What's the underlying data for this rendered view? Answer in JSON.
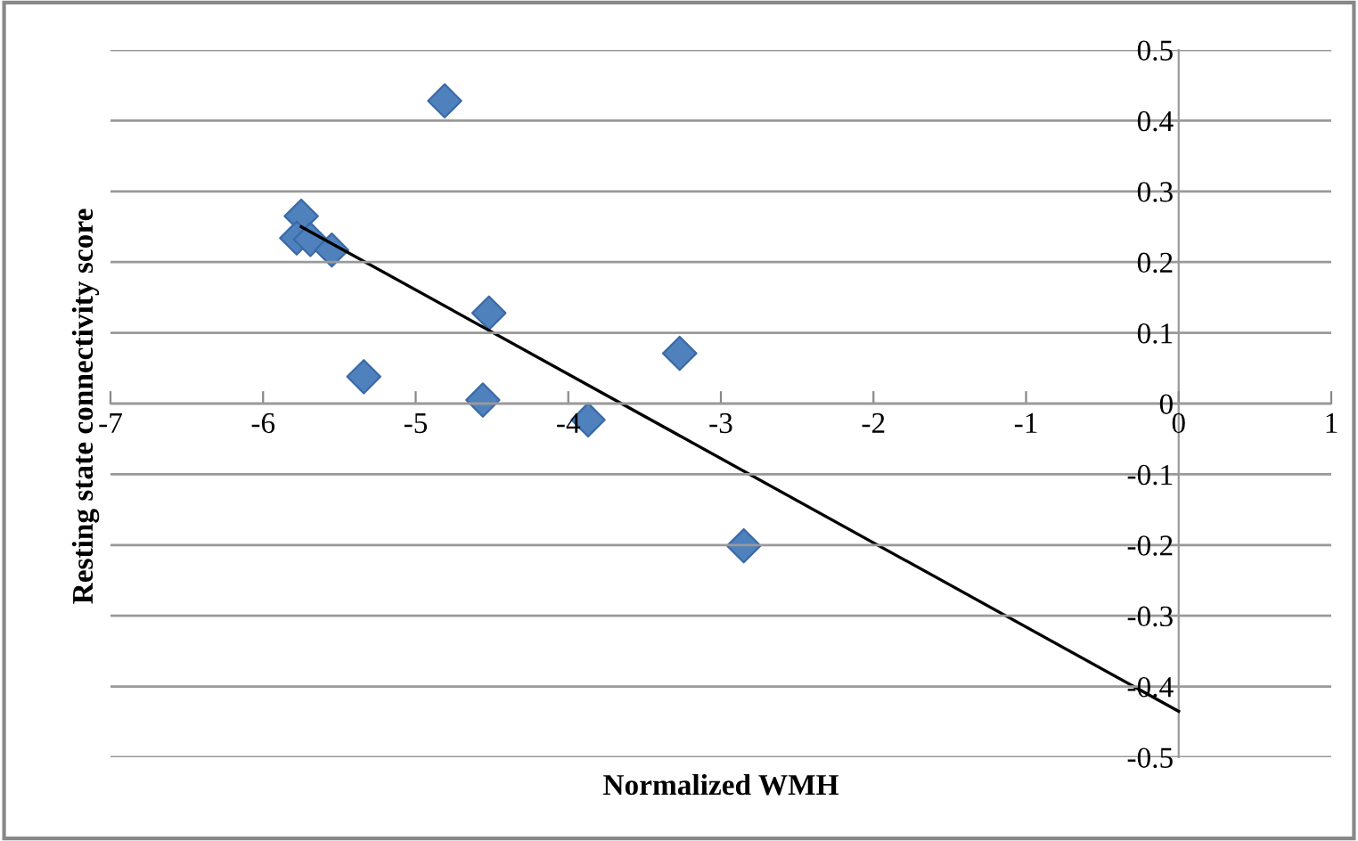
{
  "chart_data": {
    "type": "scatter",
    "xlabel": "Normalized WMH",
    "ylabel": "Resting state connectivity score",
    "xlim": [
      -7,
      1
    ],
    "xticks": [
      -7,
      -6,
      -5,
      -4,
      -3,
      -2,
      -1,
      0,
      1
    ],
    "ylim": [
      -0.5,
      0.5
    ],
    "yticks": [
      -0.5,
      -0.4,
      -0.3,
      -0.2,
      -0.1,
      0,
      0.1,
      0.2,
      0.3,
      0.4,
      0.5
    ],
    "grid": "y",
    "legend": false,
    "series": [
      {
        "color": "#4f81bd",
        "marker": "diamond",
        "x": [
          -4.81,
          -5.75,
          -5.78,
          -5.69,
          -5.55,
          -4.52,
          -5.34,
          -4.56,
          -3.87,
          -3.27,
          -2.85
        ],
        "values": [
          0.428,
          0.265,
          0.234,
          0.232,
          0.217,
          0.128,
          0.038,
          0.005,
          -0.023,
          0.071,
          -0.201
        ]
      },
      {
        "type": "line",
        "color": "#000000",
        "marker": "none",
        "x": [
          -5.75,
          0
        ],
        "values": [
          0.25,
          -0.435
        ]
      }
    ]
  }
}
